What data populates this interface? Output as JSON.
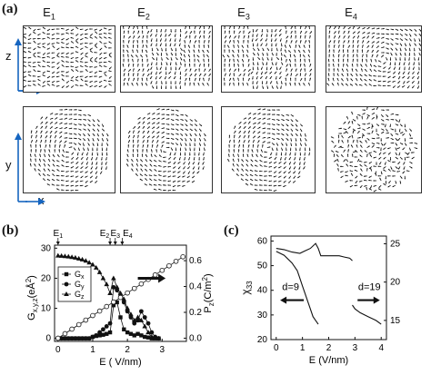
{
  "panel_a": {
    "label": "(a)",
    "columns": [
      {
        "label_main": "E",
        "label_sub": "1"
      },
      {
        "label_main": "E",
        "label_sub": "2"
      },
      {
        "label_main": "E",
        "label_sub": "3"
      },
      {
        "label_main": "E",
        "label_sub": "4"
      }
    ],
    "row1_axes": {
      "vertical": "z",
      "horizontal": "x"
    },
    "row2_axes": {
      "vertical": "y",
      "horizontal": "x"
    }
  },
  "panel_b": {
    "label": "(b)",
    "field_markers": [
      {
        "main": "E",
        "sub": "1"
      },
      {
        "main": "E",
        "sub": "2"
      },
      {
        "main": "E",
        "sub": "3"
      },
      {
        "main": "E",
        "sub": "4"
      }
    ]
  },
  "panel_c": {
    "label": "(c)",
    "annotations": [
      "d=9",
      "d=19"
    ]
  },
  "chart_data": [
    {
      "type": "line",
      "panel": "(b)",
      "xlabel": "E ( V/nm)",
      "ylabel_left": "G",
      "ylabel_left_sub": "x,y,z",
      "ylabel_left_unit": "(eÅ",
      "ylabel_left_unit_sup": "2",
      "ylabel_left_unit_close": ")",
      "ylabel_right": "P",
      "ylabel_right_sub": "z",
      "ylabel_right_unit": "(C/m",
      "ylabel_right_unit_sup": "2",
      "ylabel_right_unit_close": ")",
      "xlim": [
        -0.1,
        3.7
      ],
      "ylim_left": [
        -1,
        31
      ],
      "ylim_right": [
        -0.025,
        0.72
      ],
      "xticks": [
        "0",
        "1",
        "2",
        "3"
      ],
      "yticks_left": [
        "0",
        "10",
        "20",
        "30"
      ],
      "yticks_right": [
        "0.0",
        "0.2",
        "0.4",
        "0.6"
      ],
      "legend": {
        "position": "left-center",
        "entries": [
          "G",
          "G",
          "G"
        ],
        "entries_sub": [
          "x",
          "y",
          "z"
        ]
      },
      "series": [
        {
          "name": "Gx",
          "marker": "square",
          "axis": "left",
          "x": [
            0,
            0.1,
            0.2,
            0.3,
            0.4,
            0.5,
            0.6,
            0.7,
            0.8,
            0.9,
            1.0,
            1.1,
            1.2,
            1.3,
            1.4,
            1.5,
            1.6,
            1.7,
            1.8,
            1.9,
            2.0,
            2.1,
            2.2,
            2.3,
            2.4,
            2.5,
            2.6,
            2.7,
            2.8,
            2.9
          ],
          "y": [
            0,
            0,
            0,
            0,
            0,
            0,
            0,
            0,
            0,
            0,
            0.5,
            0.8,
            1.0,
            1.2,
            1.5,
            2.0,
            11,
            12,
            7,
            3,
            2,
            1.5,
            1.0,
            1.5,
            1.0,
            0.5,
            0.3,
            0,
            0,
            0
          ]
        },
        {
          "name": "Gy",
          "marker": "circle",
          "axis": "left",
          "x": [
            0,
            0.1,
            0.2,
            0.3,
            0.4,
            0.5,
            0.6,
            0.7,
            0.8,
            0.9,
            1.0,
            1.1,
            1.2,
            1.3,
            1.4,
            1.5,
            1.6,
            1.7,
            1.8,
            1.9,
            2.0,
            2.1,
            2.2,
            2.3,
            2.4,
            2.5,
            2.6,
            2.7,
            2.8,
            2.9
          ],
          "y": [
            0,
            0,
            0,
            0,
            0,
            0,
            0,
            0,
            0,
            0,
            0.5,
            1,
            2,
            3,
            4,
            5,
            17,
            16,
            14,
            12,
            9,
            7,
            5,
            6,
            9,
            7,
            5,
            2,
            0.5,
            0
          ]
        },
        {
          "name": "Gz",
          "marker": "triangle",
          "axis": "left",
          "x": [
            0,
            0.1,
            0.2,
            0.3,
            0.4,
            0.5,
            0.6,
            0.7,
            0.8,
            0.9,
            1.0,
            1.1,
            1.2,
            1.3,
            1.4,
            1.5,
            1.6,
            1.7,
            1.8,
            1.9,
            2.0,
            2.1,
            2.2,
            2.3,
            2.4,
            2.5,
            2.6,
            2.7,
            2.8,
            2.9
          ],
          "y": [
            27.5,
            27.4,
            27.3,
            27.2,
            27,
            26.8,
            26.5,
            26.2,
            25.8,
            25.2,
            24.5,
            23.5,
            22,
            20,
            18,
            15,
            20,
            17,
            15,
            13,
            10,
            8,
            6,
            7,
            6,
            4,
            2,
            0.5,
            0,
            0
          ]
        },
        {
          "name": "Pz",
          "marker": "open-circle",
          "axis": "right",
          "x": [
            0,
            0.2,
            0.4,
            0.6,
            0.8,
            1.0,
            1.2,
            1.4,
            1.6,
            1.8,
            2.0,
            2.2,
            2.4,
            2.6,
            2.8,
            3.0,
            3.2,
            3.4,
            3.6
          ],
          "y": [
            0.0,
            0.035,
            0.07,
            0.105,
            0.14,
            0.175,
            0.21,
            0.245,
            0.28,
            0.315,
            0.35,
            0.385,
            0.42,
            0.455,
            0.49,
            0.525,
            0.56,
            0.595,
            0.63
          ]
        }
      ],
      "arrow_points_to": "right-axis"
    },
    {
      "type": "line",
      "panel": "(c)",
      "xlabel": "E (V/nm)",
      "ylabel": "χ",
      "ylabel_sub": "33",
      "xlim": [
        -0.2,
        4.2
      ],
      "ylim_left": [
        20,
        62
      ],
      "ylim_right": [
        12.5,
        26
      ],
      "xticks": [
        "0",
        "1",
        "2",
        "3",
        "4"
      ],
      "yticks_left": [
        "20",
        "30",
        "40",
        "50",
        "60"
      ],
      "yticks_right": [
        "15",
        "20",
        "25"
      ],
      "series": [
        {
          "name": "d=9",
          "axis": "left",
          "x": [
            0,
            0.3,
            0.6,
            0.9,
            1.1,
            1.3,
            1.4,
            1.5,
            1.6,
            1.7,
            1.8,
            1.9,
            2.0,
            2.1,
            2.2,
            2.4,
            2.6,
            2.8,
            2.9
          ],
          "y": [
            57,
            56.5,
            55.5,
            55,
            56,
            57,
            58,
            59,
            57,
            54,
            54,
            54,
            54,
            54,
            54,
            54,
            53.5,
            53,
            52
          ]
        },
        {
          "name": "d=19",
          "axis": "right",
          "x": [
            0,
            0.3,
            0.6,
            0.8,
            0.9,
            1.0,
            1.1,
            1.2,
            1.3,
            1.4,
            1.5,
            1.6,
            2.9,
            3.0,
            3.2,
            3.5,
            3.8,
            4.0
          ],
          "y": [
            24,
            23.5,
            22.5,
            21.5,
            20.5,
            19.5,
            18.5,
            17.5,
            16.5,
            15.5,
            15,
            14.5,
            17,
            16.5,
            16,
            15.5,
            15,
            14.5
          ]
        }
      ]
    }
  ]
}
